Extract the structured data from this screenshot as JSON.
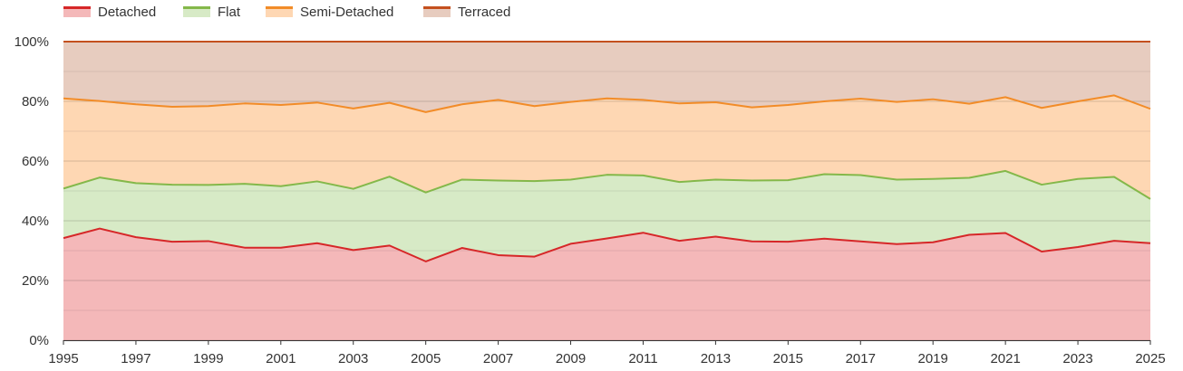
{
  "chart_data": {
    "type": "area",
    "stacked": true,
    "normalized": true,
    "x": [
      1995,
      1996,
      1997,
      1998,
      1999,
      2000,
      2001,
      2002,
      2003,
      2004,
      2005,
      2006,
      2007,
      2008,
      2009,
      2010,
      2011,
      2012,
      2013,
      2014,
      2015,
      2016,
      2017,
      2018,
      2019,
      2020,
      2021,
      2022,
      2023,
      2024,
      2025
    ],
    "x_ticks": [
      "1995",
      "1997",
      "1999",
      "2001",
      "2003",
      "2005",
      "2007",
      "2009",
      "2011",
      "2013",
      "2015",
      "2017",
      "2019",
      "2021",
      "2023",
      "2025"
    ],
    "y_ticks": [
      "0%",
      "20%",
      "40%",
      "60%",
      "80%",
      "100%"
    ],
    "ylim": [
      0,
      100
    ],
    "grid": true,
    "legend_position": "top-left",
    "series": [
      {
        "name": "Detached",
        "line_color": "#d62728",
        "fill_color": "#f4b8b9",
        "cumulative_top": [
          34.2,
          37.4,
          34.5,
          33.0,
          33.2,
          31.0,
          31.0,
          32.5,
          30.2,
          31.7,
          26.4,
          30.9,
          28.5,
          28.0,
          32.3,
          34.1,
          36.0,
          33.3,
          34.7,
          33.1,
          33.0,
          34.0,
          33.1,
          32.2,
          32.8,
          35.3,
          35.9,
          29.7,
          31.2,
          33.3,
          32.5
        ]
      },
      {
        "name": "Flat",
        "line_color": "#84b84a",
        "fill_color": "#d7eac6",
        "cumulative_top": [
          50.8,
          54.5,
          52.6,
          52.1,
          52.0,
          52.4,
          51.6,
          53.2,
          50.7,
          54.8,
          49.5,
          53.8,
          53.5,
          53.3,
          53.8,
          55.4,
          55.2,
          53.0,
          53.8,
          53.5,
          53.6,
          55.6,
          55.3,
          53.8,
          54.0,
          54.4,
          56.7,
          52.1,
          54.0,
          54.7,
          47.3
        ]
      },
      {
        "name": "Semi-Detached",
        "line_color": "#f28c28",
        "fill_color": "#fed7b3",
        "cumulative_top": [
          81.0,
          80.1,
          79.0,
          78.2,
          78.4,
          79.3,
          78.8,
          79.6,
          77.6,
          79.5,
          76.4,
          79.0,
          80.5,
          78.4,
          79.8,
          81.0,
          80.5,
          79.3,
          79.7,
          78.0,
          78.8,
          80.0,
          80.9,
          79.8,
          80.7,
          79.2,
          81.4,
          77.8,
          80.0,
          82.0,
          77.5
        ]
      },
      {
        "name": "Terraced",
        "line_color": "#c4501e",
        "fill_color": "#e7ccbf",
        "cumulative_top": [
          100,
          100,
          100,
          100,
          100,
          100,
          100,
          100,
          100,
          100,
          100,
          100,
          100,
          100,
          100,
          100,
          100,
          100,
          100,
          100,
          100,
          100,
          100,
          100,
          100,
          100,
          100,
          100,
          100,
          100,
          100
        ]
      }
    ]
  }
}
